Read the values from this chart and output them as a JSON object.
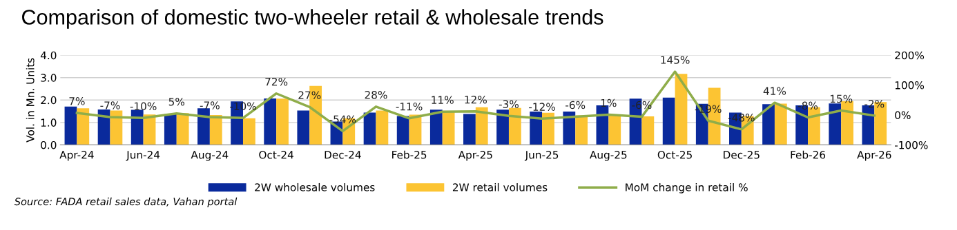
{
  "chart_data": {
    "type": "bar",
    "title": "Comparison of domestic two-wheeler retail & wholesale trends",
    "ylabel": "Vol. in Mn. Units",
    "categories": [
      "Apr-24",
      null,
      "Jun-24",
      null,
      "Aug-24",
      null,
      "Oct-24",
      null,
      "Dec-24",
      null,
      "Feb-25",
      null,
      "Apr-25",
      null,
      "Jun-25",
      null,
      "Aug-25",
      null,
      "Oct-25",
      null,
      "Dec-25",
      null,
      "Feb-26",
      null,
      "Apr-26"
    ],
    "series": [
      {
        "name": "2W wholesale volumes",
        "color": "#0a2a9c",
        "values": [
          1.71,
          1.58,
          1.56,
          1.37,
          1.63,
          1.94,
          2.07,
          1.53,
          1.04,
          1.44,
          1.29,
          1.57,
          1.38,
          1.57,
          1.49,
          1.49,
          1.76,
          2.06,
          2.11,
          1.83,
          1.44,
          1.82,
          1.76,
          1.85,
          1.76
        ]
      },
      {
        "name": "2W retail volumes",
        "color": "#fcc433",
        "values": [
          1.63,
          1.53,
          1.36,
          1.42,
          1.33,
          1.19,
          2.06,
          2.63,
          1.19,
          1.53,
          1.35,
          1.51,
          1.68,
          1.65,
          1.43,
          1.32,
          1.35,
          1.27,
          3.17,
          2.55,
          1.29,
          1.84,
          1.68,
          1.95,
          1.91
        ]
      },
      {
        "name": "MoM change in retail %",
        "type": "line",
        "axis": "y2",
        "color": "#8fad4a",
        "values": [
          7,
          -7,
          -10,
          5,
          -7,
          -10,
          72,
          27,
          -54,
          28,
          -11,
          11,
          12,
          -3,
          -12,
          -6,
          1,
          -6,
          145,
          -19,
          -48,
          41,
          -8,
          15,
          -2
        ],
        "value_labels": [
          "7%",
          "-7%",
          "-10%",
          "5%",
          "-7%",
          "-10%",
          "72%",
          "27%",
          "-54%",
          "28%",
          "-11%",
          "11%",
          "12%",
          "-3%",
          "-12%",
          "-6%",
          "1%",
          "-6%",
          "145%",
          "-19%",
          "-48%",
          "41%",
          "-8%",
          "15%",
          "-2%"
        ]
      }
    ],
    "ylim": [
      0,
      4
    ],
    "yticks": [
      {
        "value": 0,
        "label": "0.0"
      },
      {
        "value": 1,
        "label": "1.0"
      },
      {
        "value": 2,
        "label": "2.0"
      },
      {
        "value": 3,
        "label": "3.0"
      },
      {
        "value": 4,
        "label": "4.0"
      }
    ],
    "y2lim": [
      -100,
      200
    ],
    "y2ticks": [
      {
        "value": -100,
        "label": "-100%"
      },
      {
        "value": 0,
        "label": "0%"
      },
      {
        "value": 100,
        "label": "100%"
      },
      {
        "value": 200,
        "label": "200%"
      }
    ],
    "grid": "y",
    "legend": "bottom",
    "marker": "none",
    "annotations": [
      "Source: FADA retail sales data, Vahan portal"
    ]
  }
}
